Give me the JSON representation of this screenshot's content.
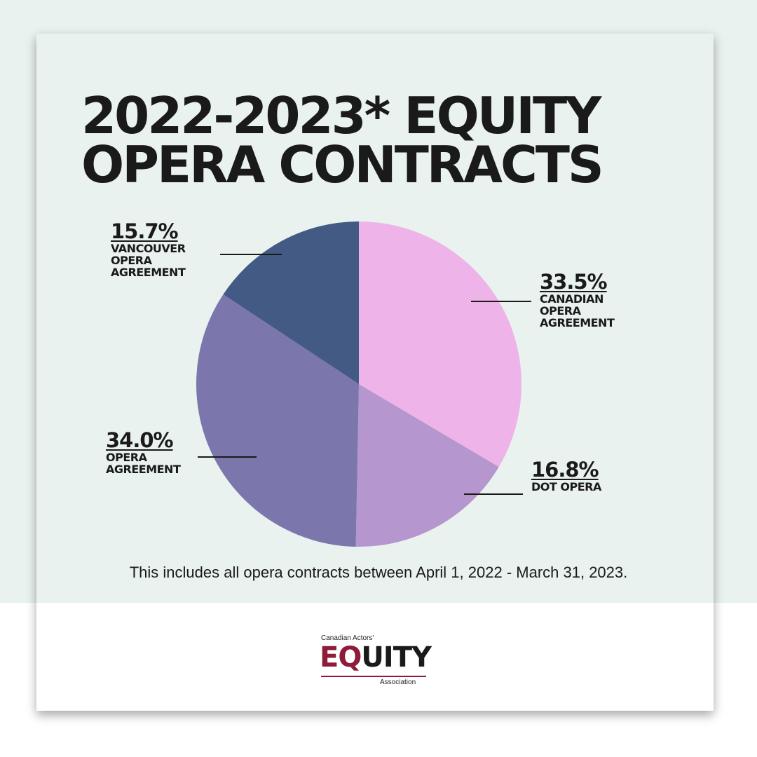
{
  "title_line1": "2022-2023* EQUITY",
  "title_line2": "OPERA CONTRACTS",
  "footnote": "This includes all opera contracts between April 1, 2022 - March 31, 2023.",
  "logo": {
    "top": "Canadian Actors'",
    "eq": "EQ",
    "rest": "UITY",
    "bottom": "Association"
  },
  "chart_data": {
    "type": "pie",
    "title": "2022-2023* EQUITY OPERA CONTRACTS",
    "slices": [
      {
        "label": "CANADIAN OPERA AGREEMENT",
        "value": 33.5,
        "pct_text": "33.5%",
        "color": "#eeb3e8"
      },
      {
        "label": "DOT OPERA",
        "value": 16.8,
        "pct_text": "16.8%",
        "color": "#b596cf"
      },
      {
        "label": "OPERA AGREEMENT",
        "value": 34.0,
        "pct_text": "34.0%",
        "color": "#7b76ab"
      },
      {
        "label": "VANCOUVER OPERA AGREEMENT",
        "value": 15.7,
        "pct_text": "15.7%",
        "color": "#425a84"
      }
    ],
    "labels_display": {
      "canadian": "CANADIAN\nOPERA\nAGREEMENT",
      "dot": "DOT OPERA",
      "opera": "OPERA\nAGREEMENT",
      "vancouver": "VANCOUVER\nOPERA\nAGREEMENT"
    }
  }
}
